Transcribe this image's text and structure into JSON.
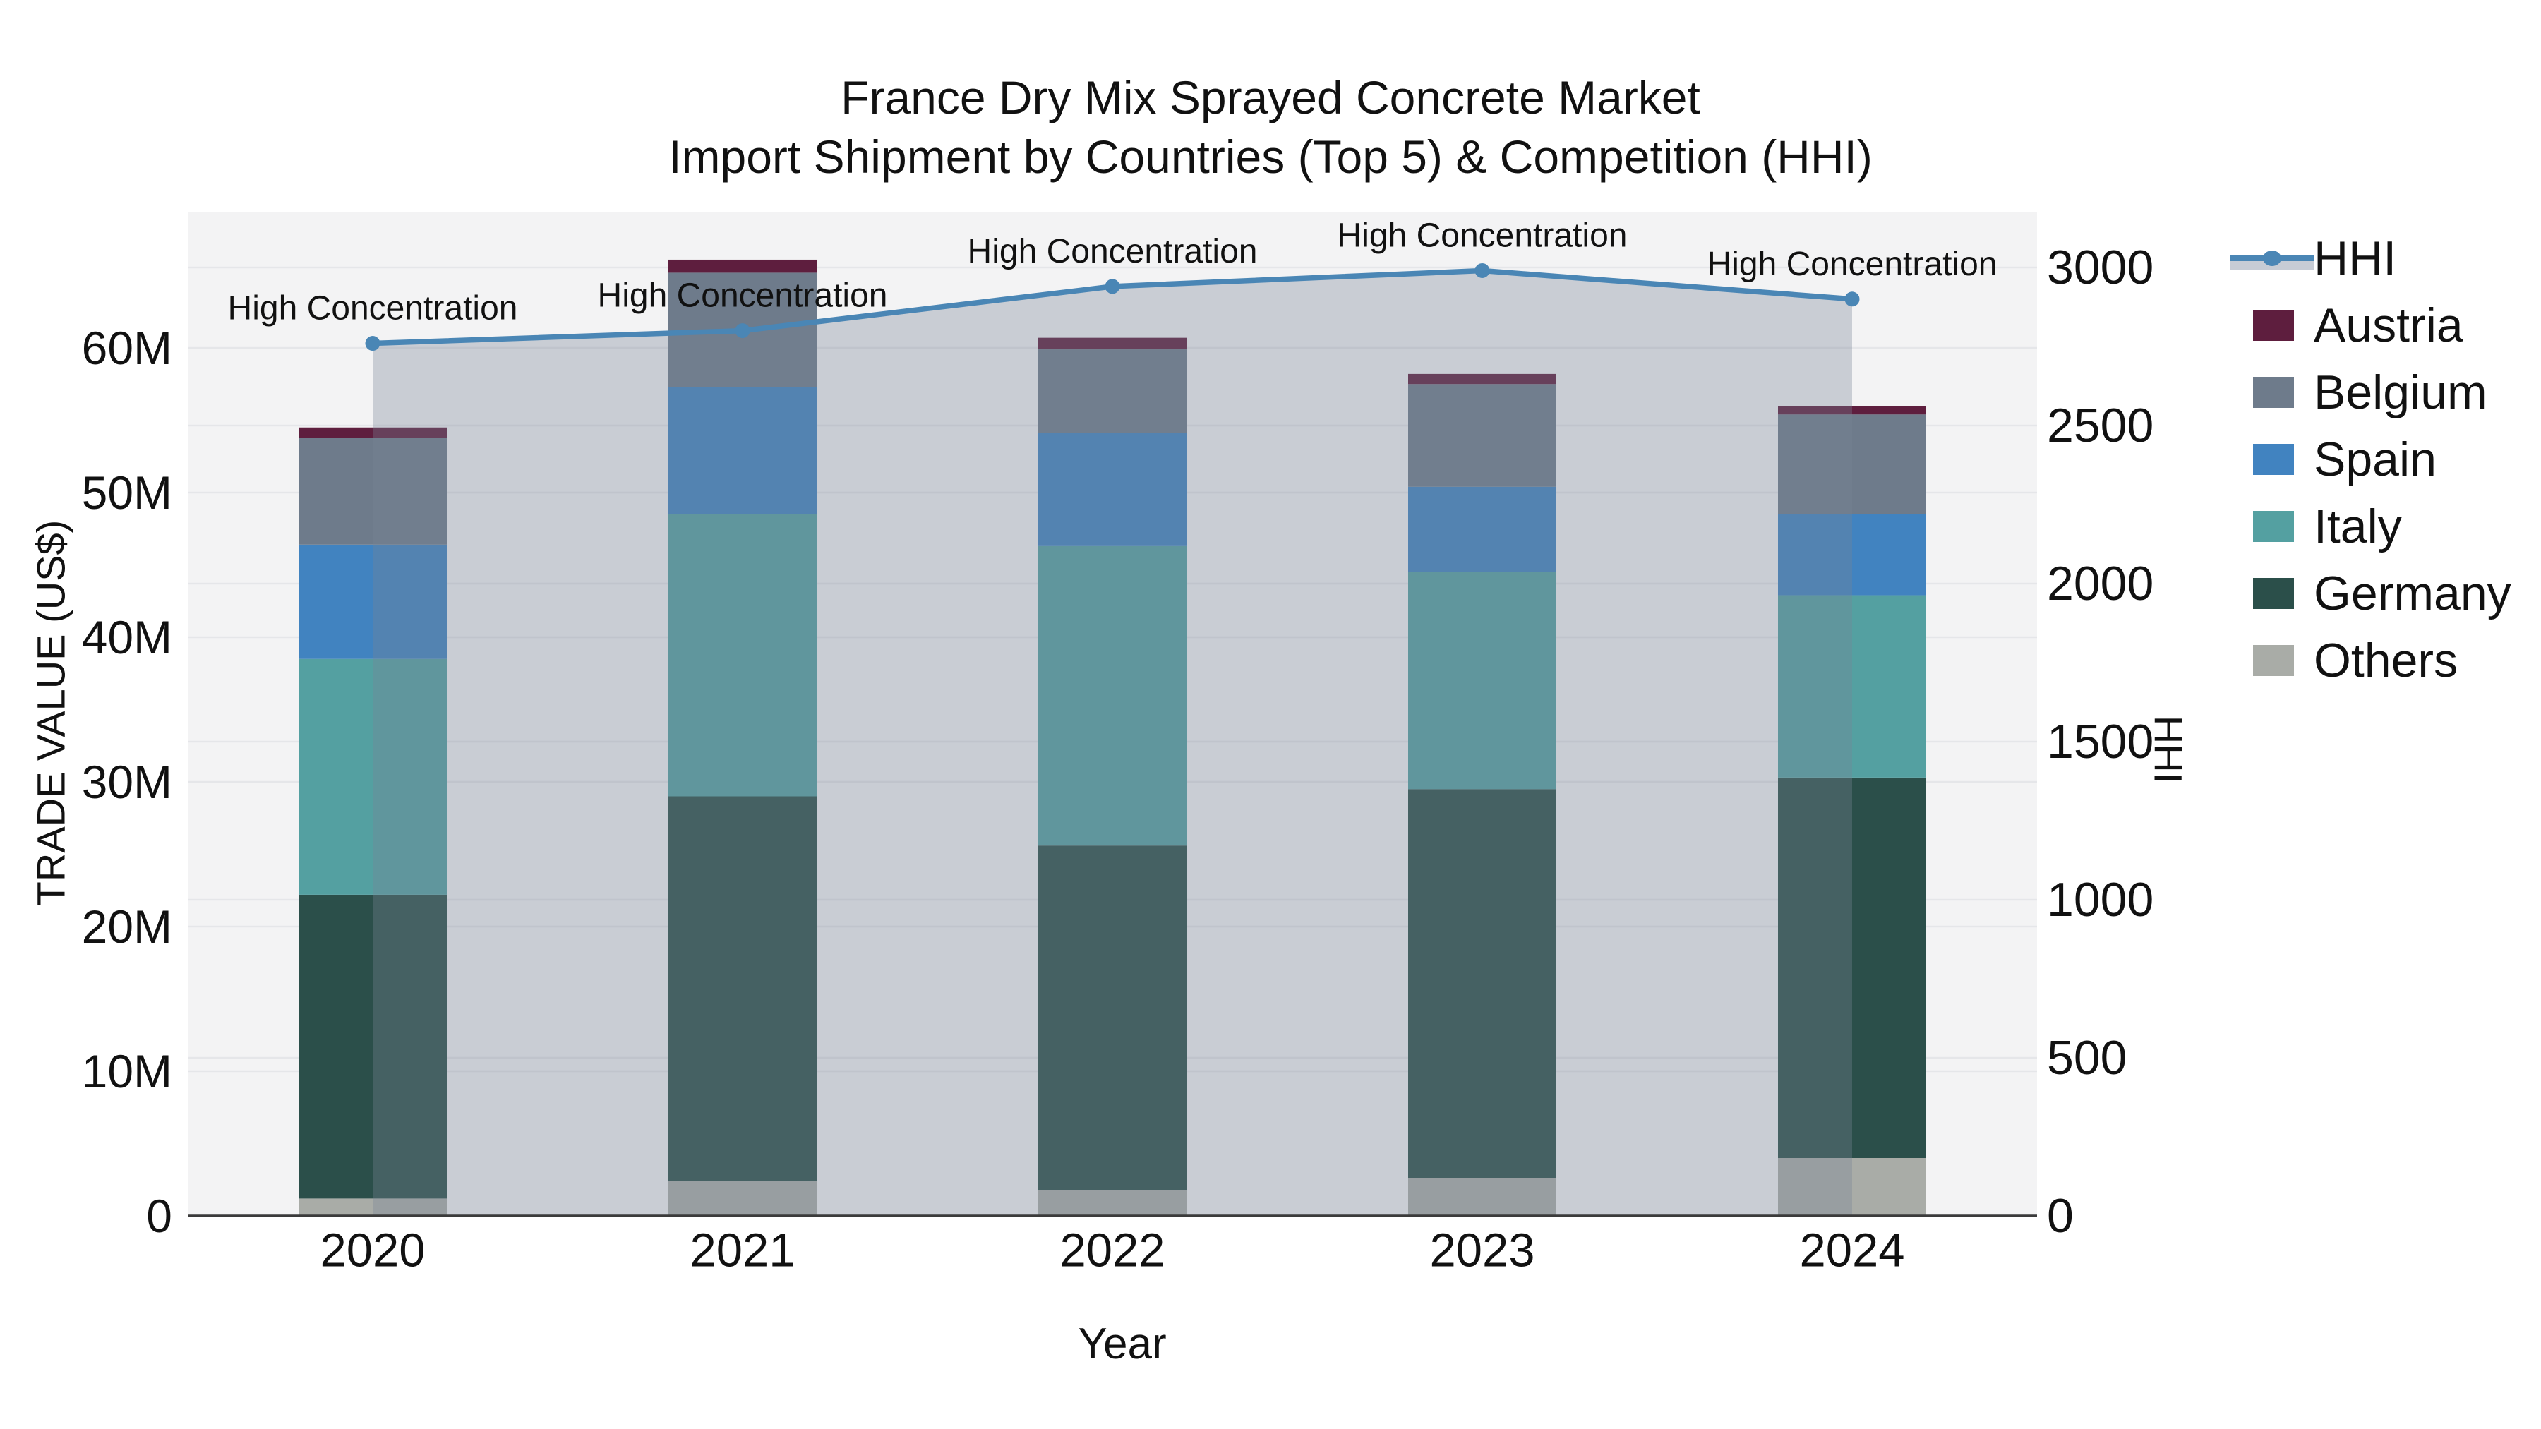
{
  "title": {
    "line1": "France Dry Mix Sprayed Concrete Market",
    "line2": "Import Shipment by Countries (Top 5) & Competition (HHI)"
  },
  "axes": {
    "x": {
      "title": "Year",
      "categories": [
        "2020",
        "2021",
        "2022",
        "2023",
        "2024"
      ]
    },
    "y_left": {
      "title": "TRADE VALUE (US$)",
      "tick_labels": [
        "0",
        "10M",
        "20M",
        "30M",
        "40M",
        "50M",
        "60M"
      ],
      "tick_values_m": [
        0,
        10,
        20,
        30,
        40,
        50,
        60
      ]
    },
    "y_right": {
      "title": "HHI",
      "tick_labels": [
        "0",
        "500",
        "1000",
        "1500",
        "2000",
        "2500",
        "3000"
      ],
      "tick_values": [
        0,
        500,
        1000,
        1500,
        2000,
        2500,
        3000
      ]
    }
  },
  "colors": {
    "Austria": "#5e1e3e",
    "Belgium": "#6e7b8b",
    "Spain": "#4183c0",
    "Italy": "#54a0a1",
    "Germany": "#2b4f4a",
    "Others": "#a9aca7",
    "hhi_line": "#4a86b5",
    "hhi_area_fill": "rgba(119,131,149,0.34)",
    "legend_band": "#c7ccd5",
    "plot_bg": "#f3f3f4",
    "grid": "#e5e6e9",
    "axis_line": "#3b3b3b",
    "text": "#111111"
  },
  "legend": {
    "items": [
      {
        "label": "HHI",
        "type": "line"
      },
      {
        "label": "Austria",
        "type": "swatch"
      },
      {
        "label": "Belgium",
        "type": "swatch"
      },
      {
        "label": "Spain",
        "type": "swatch"
      },
      {
        "label": "Italy",
        "type": "swatch"
      },
      {
        "label": "Germany",
        "type": "swatch"
      },
      {
        "label": "Others",
        "type": "swatch"
      }
    ]
  },
  "chart_data": {
    "type": "stacked-bar+line",
    "title": "France Dry Mix Sprayed Concrete Market Import Shipment by Countries (Top 5) & Competition (HHI)",
    "xlabel": "Year",
    "ylabel_left": "TRADE VALUE (US$)",
    "ylabel_right": "HHI",
    "categories": [
      "2020",
      "2021",
      "2022",
      "2023",
      "2024"
    ],
    "stack_order_bottom_to_top": [
      "Others",
      "Germany",
      "Italy",
      "Spain",
      "Belgium",
      "Austria"
    ],
    "series": [
      {
        "name": "Others",
        "values_m_usd": [
          1.2,
          2.4,
          1.8,
          2.6,
          4.0
        ]
      },
      {
        "name": "Germany",
        "values_m_usd": [
          21.0,
          26.6,
          23.8,
          26.9,
          26.3
        ]
      },
      {
        "name": "Italy",
        "values_m_usd": [
          16.3,
          19.5,
          20.7,
          15.0,
          12.6
        ]
      },
      {
        "name": "Spain",
        "values_m_usd": [
          7.9,
          8.8,
          7.8,
          5.9,
          5.6
        ]
      },
      {
        "name": "Belgium",
        "values_m_usd": [
          7.4,
          7.9,
          5.8,
          7.1,
          6.9
        ]
      },
      {
        "name": "Austria",
        "values_m_usd": [
          0.7,
          0.9,
          0.8,
          0.7,
          0.6
        ]
      }
    ],
    "totals_m_usd": [
      54.5,
      66.1,
      60.7,
      58.2,
      56.0
    ],
    "line_series": {
      "name": "HHI",
      "values": [
        2760,
        2800,
        2940,
        2990,
        2900
      ],
      "area_under_line": true
    },
    "annotations": [
      "High Concentration",
      "High Concentration",
      "High Concentration",
      "High Concentration",
      "High Concentration"
    ],
    "ylim_left_m": [
      0,
      69.5
    ],
    "ylim_right": [
      0,
      3180
    ],
    "grid": true,
    "legend_position": "right"
  }
}
